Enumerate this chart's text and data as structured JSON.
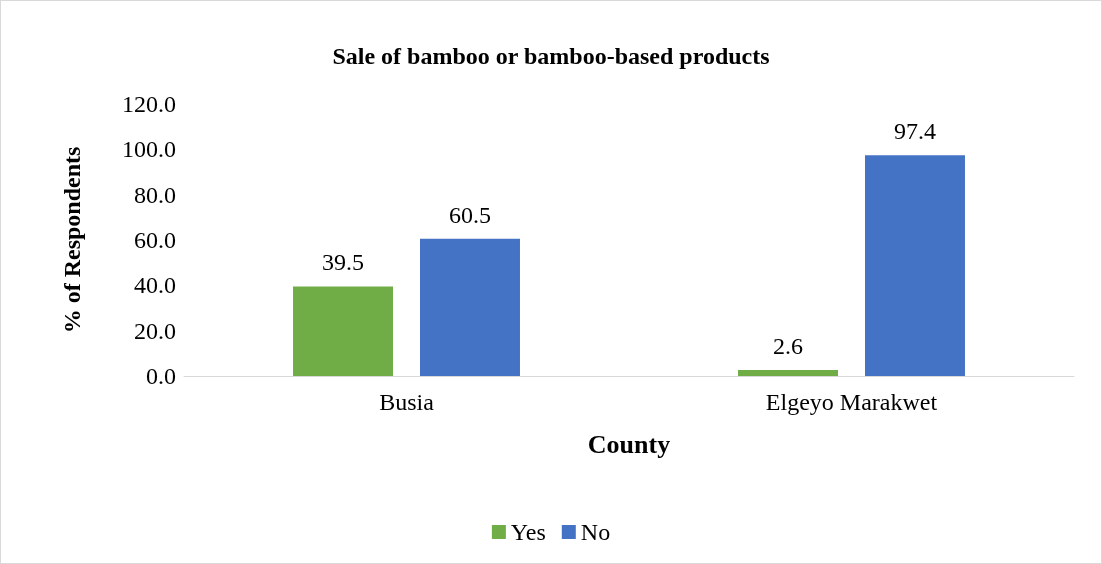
{
  "chart_data": {
    "type": "bar",
    "title": "Sale of bamboo or bamboo-based products",
    "xlabel": "County",
    "ylabel": "% of Respondents",
    "categories": [
      "Busia",
      "Elgeyo Marakwet"
    ],
    "series": [
      {
        "name": "Yes",
        "color": "#70ad47",
        "values": [
          39.5,
          2.6
        ]
      },
      {
        "name": "No",
        "color": "#4472c4",
        "values": [
          60.5,
          97.4
        ]
      }
    ],
    "ylim": [
      0,
      120
    ],
    "yticks": [
      {
        "value": 0,
        "label": "0.0"
      },
      {
        "value": 20,
        "label": "20.0"
      },
      {
        "value": 40,
        "label": "40.0"
      },
      {
        "value": 60,
        "label": "60.0"
      },
      {
        "value": 80,
        "label": "80.0"
      },
      {
        "value": 100,
        "label": "100.0"
      },
      {
        "value": 120,
        "label": "120.0"
      }
    ],
    "data_labels": true,
    "grid": false,
    "legend": "bottom"
  }
}
